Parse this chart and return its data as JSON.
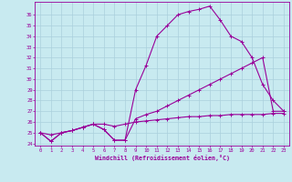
{
  "xlabel": "Windchill (Refroidissement éolien,°C)",
  "bg_color": "#c8eaf0",
  "grid_color": "#aad0dc",
  "line_color": "#990099",
  "xlim": [
    -0.5,
    23.5
  ],
  "ylim": [
    23.8,
    37.2
  ],
  "yticks": [
    24,
    25,
    26,
    27,
    28,
    29,
    30,
    31,
    32,
    33,
    34,
    35,
    36
  ],
  "xticks": [
    0,
    1,
    2,
    3,
    4,
    5,
    6,
    7,
    8,
    9,
    10,
    11,
    12,
    13,
    14,
    15,
    16,
    17,
    18,
    19,
    20,
    21,
    22,
    23
  ],
  "line1_x": [
    0,
    1,
    2,
    3,
    4,
    5,
    6,
    7,
    8,
    9,
    10,
    11,
    12,
    13,
    14,
    15,
    16,
    17,
    18,
    19,
    20,
    21,
    22,
    23
  ],
  "line1_y": [
    25.0,
    24.2,
    25.0,
    25.2,
    25.5,
    25.8,
    25.3,
    24.3,
    24.3,
    29.0,
    31.3,
    34.0,
    35.0,
    36.0,
    36.3,
    36.5,
    36.8,
    35.5,
    34.0,
    33.5,
    32.0,
    29.5,
    28.0,
    27.0
  ],
  "line2_x": [
    0,
    1,
    2,
    3,
    4,
    5,
    6,
    7,
    8,
    9,
    10,
    11,
    12,
    13,
    14,
    15,
    16,
    17,
    18,
    19,
    20,
    21,
    22,
    23
  ],
  "line2_y": [
    25.0,
    24.2,
    25.0,
    25.2,
    25.5,
    25.8,
    25.3,
    24.3,
    24.3,
    26.3,
    26.7,
    27.0,
    27.5,
    28.0,
    28.5,
    29.0,
    29.5,
    30.0,
    30.5,
    31.0,
    31.5,
    32.0,
    27.0,
    27.0
  ],
  "line3_x": [
    0,
    1,
    2,
    3,
    4,
    5,
    6,
    7,
    8,
    9,
    10,
    11,
    12,
    13,
    14,
    15,
    16,
    17,
    18,
    19,
    20,
    21,
    22,
    23
  ],
  "line3_y": [
    25.0,
    24.8,
    25.0,
    25.2,
    25.5,
    25.8,
    25.8,
    25.6,
    25.8,
    26.0,
    26.1,
    26.2,
    26.3,
    26.4,
    26.5,
    26.5,
    26.6,
    26.6,
    26.7,
    26.7,
    26.7,
    26.7,
    26.8,
    26.8
  ]
}
